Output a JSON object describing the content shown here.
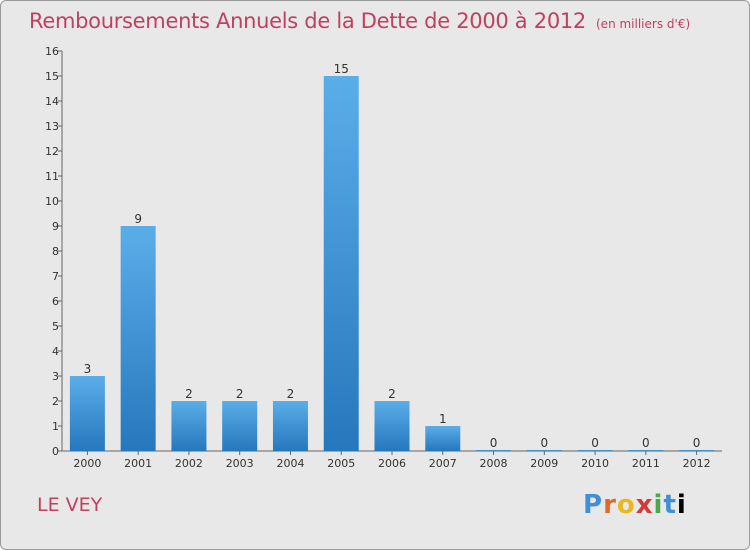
{
  "title": "Remboursements Annuels de la Dette de 2000 à 2012",
  "unit": "(en milliers d'€)",
  "place": "LE VEY",
  "logo_letters": [
    "P",
    "r",
    "o",
    "x",
    "i",
    "t",
    "i"
  ],
  "colors": {
    "bar_top": "#5aaee8",
    "bar_bottom": "#2677bd",
    "title": "#c04060"
  },
  "chart_data": {
    "type": "bar",
    "title": "Remboursements Annuels de la Dette de 2000 à 2012",
    "categories": [
      "2000",
      "2001",
      "2002",
      "2003",
      "2004",
      "2005",
      "2006",
      "2007",
      "2008",
      "2009",
      "2010",
      "2011",
      "2012"
    ],
    "values": [
      3,
      9,
      2,
      2,
      2,
      15,
      2,
      1,
      0,
      0,
      0,
      0,
      0
    ],
    "yticks": [
      "0",
      "1",
      "2",
      "3",
      "4",
      "5",
      "6",
      "7",
      "8",
      "9",
      "10",
      "11",
      "12",
      "13",
      "14",
      "15",
      "16"
    ],
    "ylim": [
      0,
      16
    ],
    "grid": false,
    "xlabel": "",
    "ylabel": ""
  }
}
